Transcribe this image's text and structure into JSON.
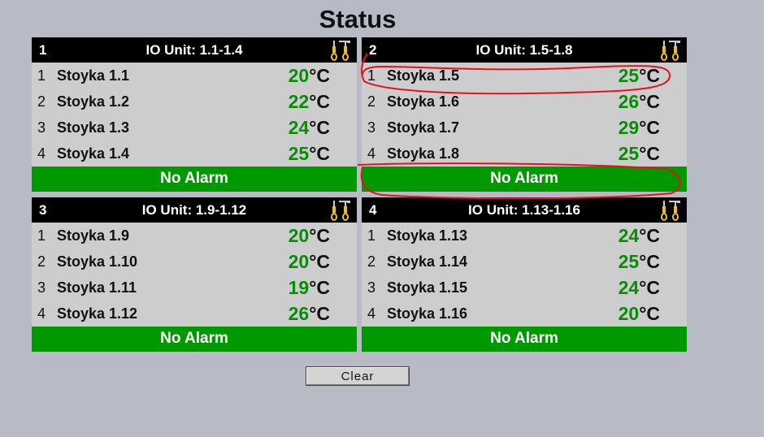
{
  "page": {
    "title": "Status"
  },
  "panels": [
    {
      "number": "1",
      "title": "IO Unit: 1.1-1.4",
      "rows": [
        {
          "num": "1",
          "name": "Stoyka 1.1",
          "temp": "20",
          "unit": "°C"
        },
        {
          "num": "2",
          "name": "Stoyka 1.2",
          "temp": "22",
          "unit": "°C"
        },
        {
          "num": "3",
          "name": "Stoyka 1.3",
          "temp": "24",
          "unit": "°C"
        },
        {
          "num": "4",
          "name": "Stoyka 1.4",
          "temp": "25",
          "unit": "°C"
        }
      ],
      "alarm": "No Alarm"
    },
    {
      "number": "2",
      "title": "IO Unit: 1.5-1.8",
      "rows": [
        {
          "num": "1",
          "name": "Stoyka 1.5",
          "temp": "25",
          "unit": "°C"
        },
        {
          "num": "2",
          "name": "Stoyka 1.6",
          "temp": "26",
          "unit": "°C"
        },
        {
          "num": "3",
          "name": "Stoyka 1.7",
          "temp": "29",
          "unit": "°C"
        },
        {
          "num": "4",
          "name": "Stoyka 1.8",
          "temp": "25",
          "unit": "°C"
        }
      ],
      "alarm": "No Alarm"
    },
    {
      "number": "3",
      "title": "IO Unit: 1.9-1.12",
      "rows": [
        {
          "num": "1",
          "name": "Stoyka 1.9",
          "temp": "20",
          "unit": "°C"
        },
        {
          "num": "2",
          "name": "Stoyka 1.10",
          "temp": "20",
          "unit": "°C"
        },
        {
          "num": "3",
          "name": "Stoyka 1.11",
          "temp": "19",
          "unit": "°C"
        },
        {
          "num": "4",
          "name": "Stoyka 1.12",
          "temp": "26",
          "unit": "°C"
        }
      ],
      "alarm": "No Alarm"
    },
    {
      "number": "4",
      "title": "IO Unit: 1.13-1.16",
      "rows": [
        {
          "num": "1",
          "name": "Stoyka 1.13",
          "temp": "24",
          "unit": "°C"
        },
        {
          "num": "2",
          "name": "Stoyka 1.14",
          "temp": "25",
          "unit": "°C"
        },
        {
          "num": "3",
          "name": "Stoyka 1.15",
          "temp": "24",
          "unit": "°C"
        },
        {
          "num": "4",
          "name": "Stoyka 1.16",
          "temp": "20",
          "unit": "°C"
        }
      ],
      "alarm": "No Alarm"
    }
  ],
  "icons": {
    "panel_tools": "tools-icon"
  },
  "colors": {
    "temperature": "#0a8c0a",
    "alarm_ok": "#009a00",
    "header": "#000000",
    "annotation": "#e0141c"
  },
  "buttons": {
    "clear_label": "Clear"
  }
}
